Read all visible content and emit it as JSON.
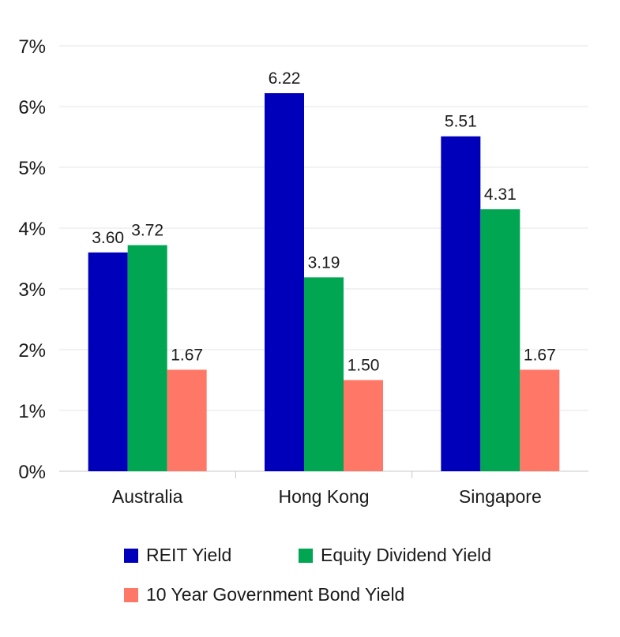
{
  "chart_data": {
    "type": "bar",
    "categories": [
      "Australia",
      "Hong Kong",
      "Singapore"
    ],
    "series": [
      {
        "name": "REIT Yield",
        "color": "#0000bb",
        "values": [
          3.6,
          6.22,
          5.51
        ],
        "labels": [
          "3.60",
          "6.22",
          "5.51"
        ]
      },
      {
        "name": "Equity Dividend Yield",
        "color": "#00a651",
        "values": [
          3.72,
          3.19,
          4.31
        ],
        "labels": [
          "3.72",
          "3.19",
          "4.31"
        ]
      },
      {
        "name": "10 Year Government Bond Yield",
        "color": "#ff7766",
        "values": [
          1.67,
          1.5,
          1.67
        ],
        "labels": [
          "1.67",
          "1.50",
          "1.67"
        ]
      }
    ],
    "ylim": [
      0,
      7
    ],
    "yticks": [
      0,
      1,
      2,
      3,
      4,
      5,
      6,
      7
    ],
    "ytick_labels": [
      "0%",
      "1%",
      "2%",
      "3%",
      "4%",
      "5%",
      "6%",
      "7%"
    ],
    "grid": true,
    "legend_position": "bottom"
  }
}
